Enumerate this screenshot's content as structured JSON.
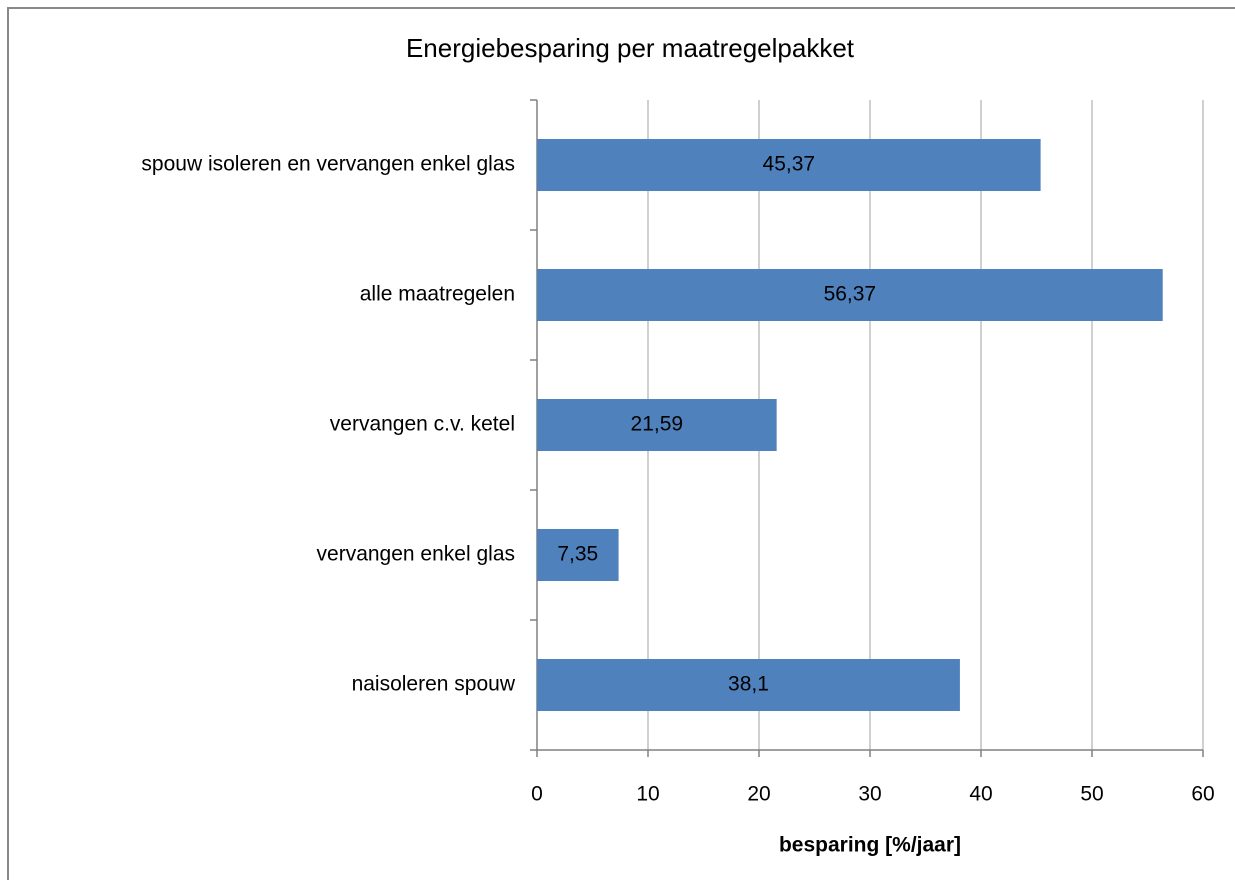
{
  "chart_data": {
    "type": "bar",
    "orientation": "horizontal",
    "title": "Energiebesparing per maatregelpakket",
    "x_label": "besparing [%/jaar]",
    "categories": [
      "spouw isoleren en vervangen enkel glas",
      "alle maatregelen",
      "vervangen c.v. ketel",
      "vervangen enkel glas",
      "naisoleren spouw"
    ],
    "values": [
      45.37,
      56.37,
      21.59,
      7.35,
      38.1
    ],
    "value_labels": [
      "45,37",
      "56,37",
      "21,59",
      "7,35",
      "38,1"
    ],
    "color": "#4f81bd",
    "xlim": [
      0,
      60
    ],
    "xticks": [
      0,
      10,
      20,
      30,
      40,
      50,
      60
    ],
    "grid": true
  }
}
